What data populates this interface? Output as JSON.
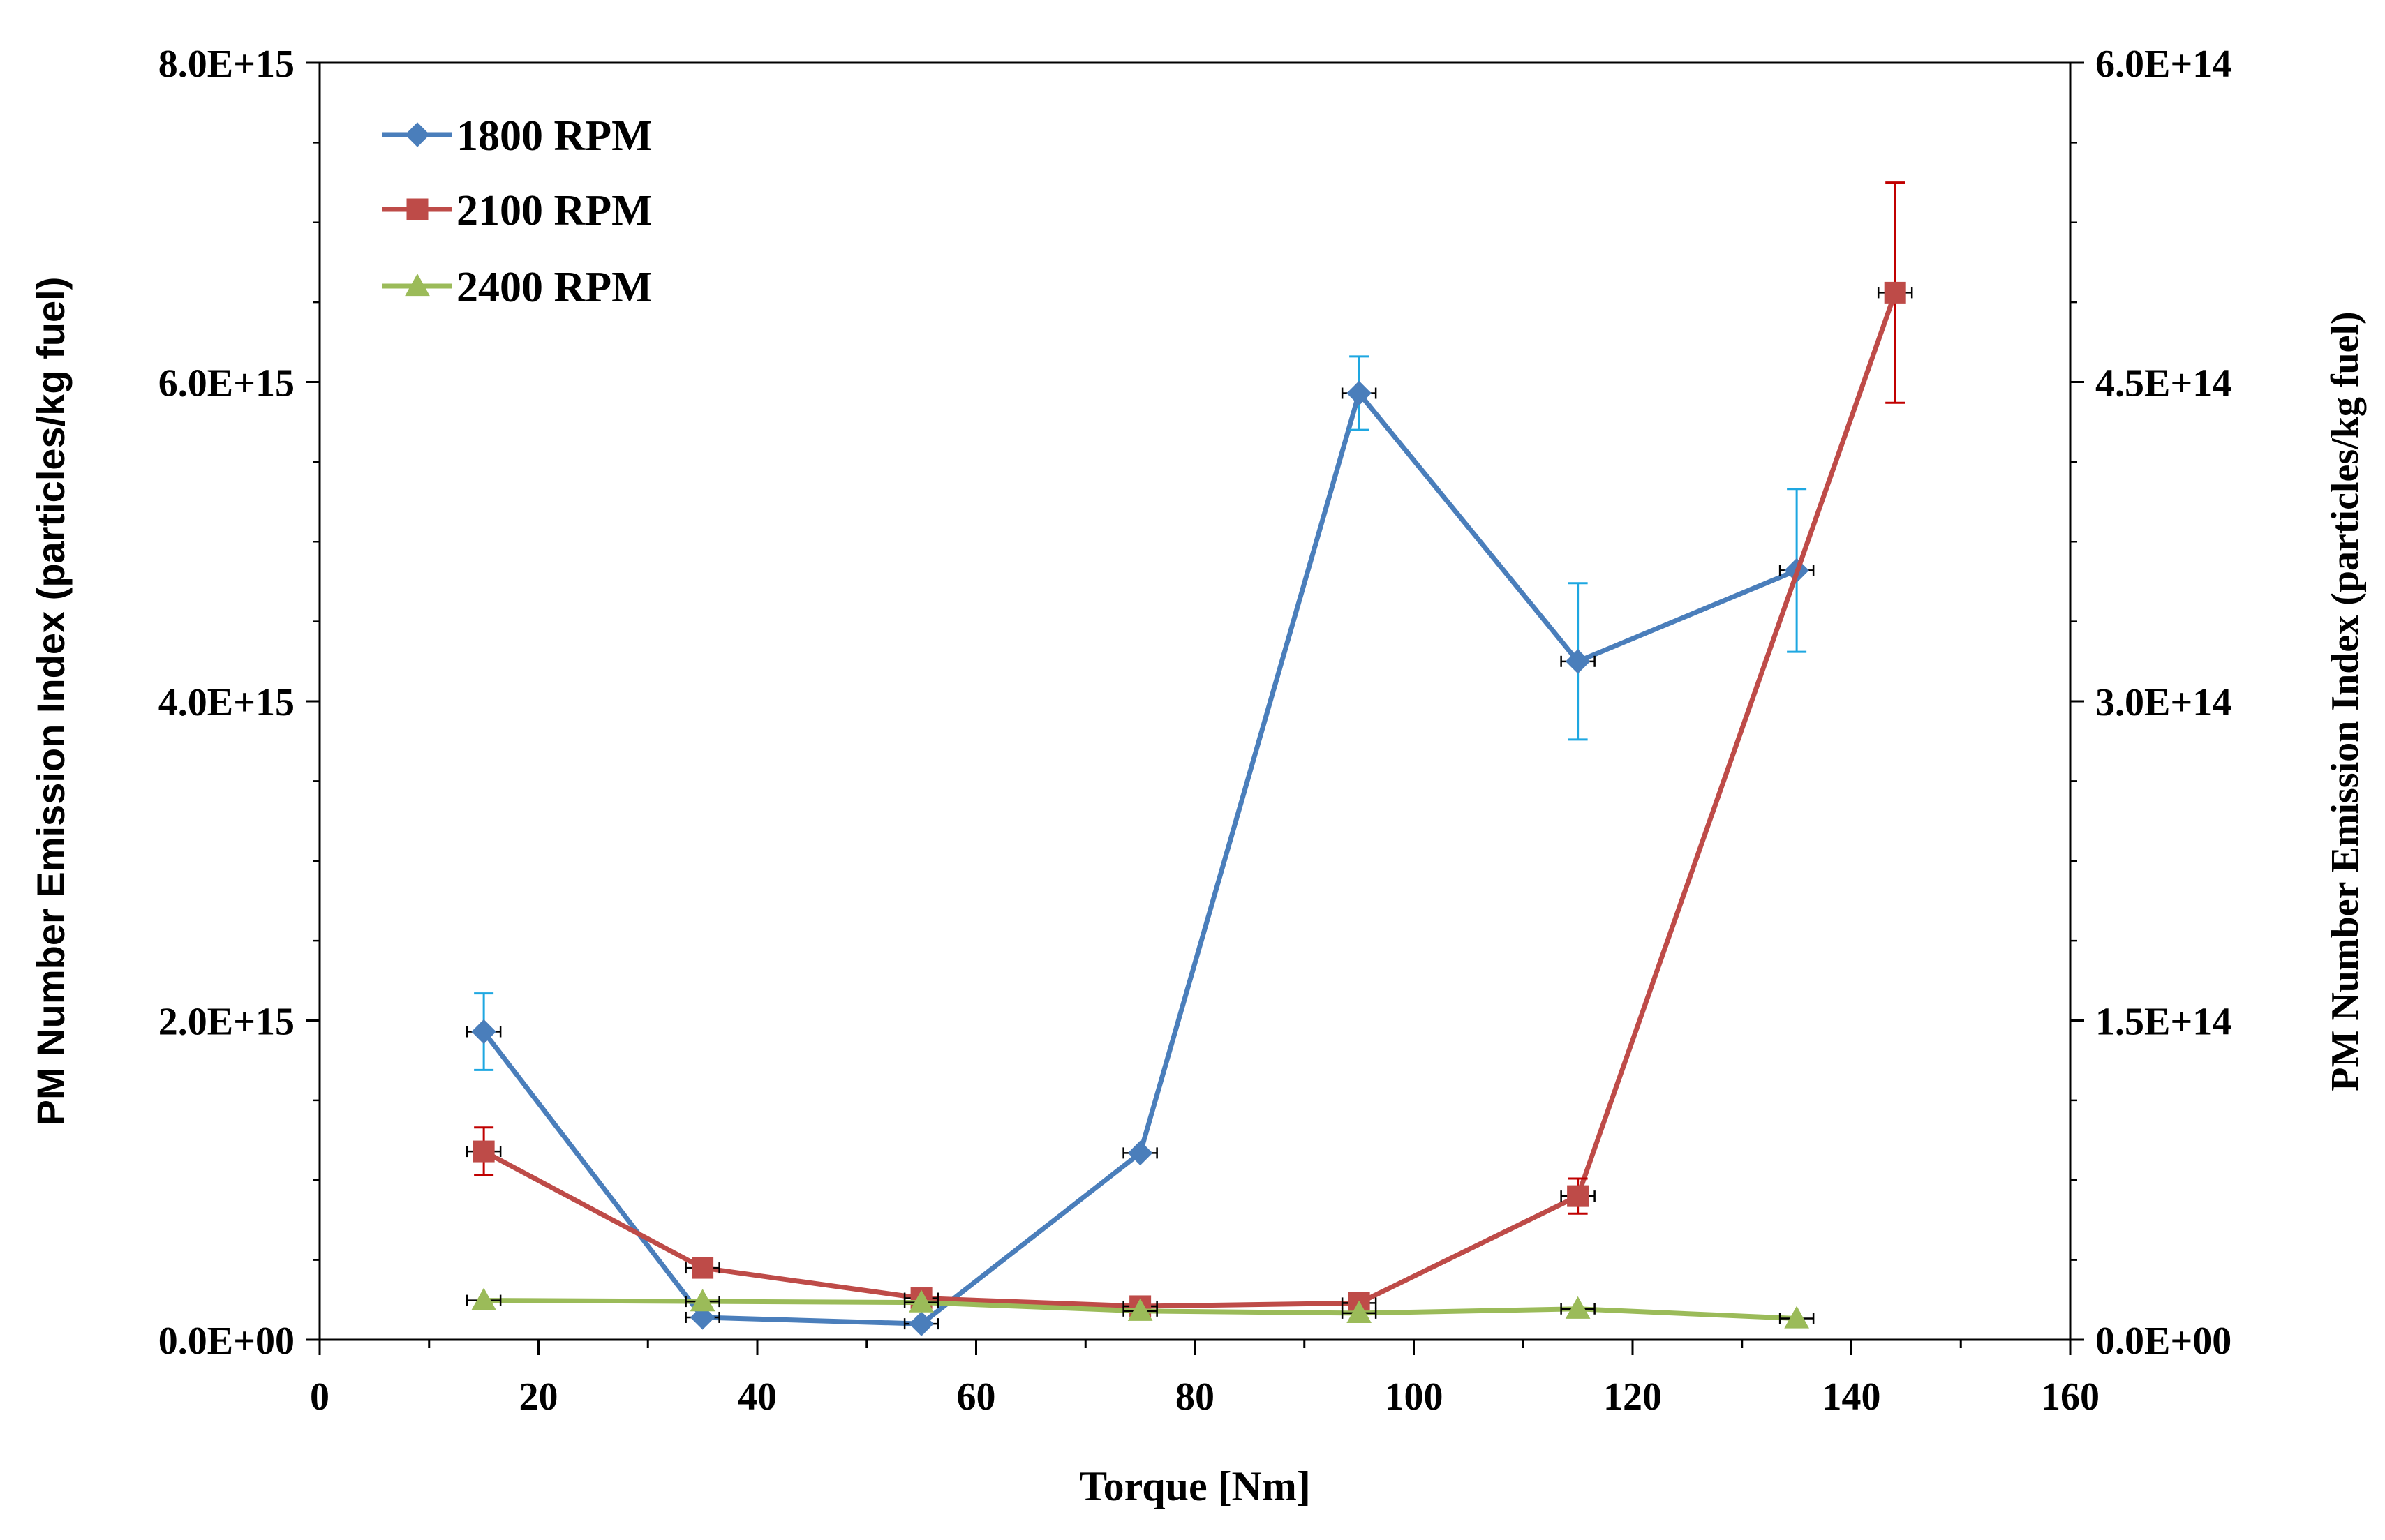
{
  "chart_data": {
    "type": "line",
    "title": "",
    "xlabel": "Torque [Nm]",
    "ylabel": "PM Number Emission Index (particles/kg fuel)",
    "y2label": "PM Number Emission Index (particles/kg fuel)",
    "xlim": [
      0,
      160
    ],
    "ylim": [
      0,
      8000000000000000.0
    ],
    "y2lim": [
      0,
      600000000000000.0
    ],
    "x_ticks": [
      0,
      20,
      40,
      60,
      80,
      100,
      120,
      140,
      160
    ],
    "x_tick_labels": [
      "0",
      "20",
      "40",
      "60",
      "80",
      "100",
      "120",
      "140",
      "160"
    ],
    "y_ticks": [
      0,
      2000000000000000.0,
      4000000000000000.0,
      6000000000000000.0,
      8000000000000000.0
    ],
    "y_tick_labels": [
      "0.0E+00",
      "2.0E+15",
      "4.0E+15",
      "6.0E+15",
      "8.0E+15"
    ],
    "y2_ticks": [
      0,
      150000000000000.0,
      300000000000000.0,
      450000000000000.0,
      600000000000000.0
    ],
    "y2_tick_labels": [
      "0.0E+00",
      "1.5E+14",
      "3.0E+14",
      "4.5E+14",
      "6.0E+14"
    ],
    "grid": false,
    "legend_position": "top-left",
    "series": [
      {
        "name": "1800 RPM",
        "axis": "left",
        "marker": "diamond",
        "color": "#4A7EBB",
        "error_color": "#1EA7E1",
        "x": [
          15,
          35,
          55,
          75,
          95,
          115,
          135
        ],
        "y": [
          1930000000000000.0,
          140000000000000.0,
          100000000000000.0,
          1170000000000000.0,
          5930000000000000.0,
          4250000000000000.0,
          4820000000000000.0
        ],
        "yerr": [
          240000000000000.0,
          0,
          0,
          0,
          230000000000000.0,
          490000000000000.0,
          510000000000000.0
        ]
      },
      {
        "name": "2100 RPM",
        "axis": "left",
        "marker": "square",
        "color": "#BE4B48",
        "error_color": "#C00000",
        "x": [
          15,
          35,
          55,
          75,
          95,
          115,
          144
        ],
        "y": [
          1180000000000000.0,
          450000000000000.0,
          260000000000000.0,
          210000000000000.0,
          230000000000000.0,
          900000000000000.0,
          6560000000000000.0
        ],
        "yerr": [
          150000000000000.0,
          0,
          0,
          0,
          0,
          110000000000000.0,
          690000000000000.0
        ]
      },
      {
        "name": "2400 RPM",
        "axis": "right",
        "marker": "triangle",
        "color": "#9BBB59",
        "error_color": "#000000",
        "x": [
          15,
          35,
          55,
          75,
          95,
          115,
          135
        ],
        "y": [
          18500000000000.0,
          18000000000000.0,
          17500000000000.0,
          13500000000000.0,
          12500000000000.0,
          14500000000000.0,
          10000000000000.0
        ],
        "yerr": [
          0,
          0,
          0,
          0,
          0,
          0,
          0
        ]
      }
    ]
  }
}
